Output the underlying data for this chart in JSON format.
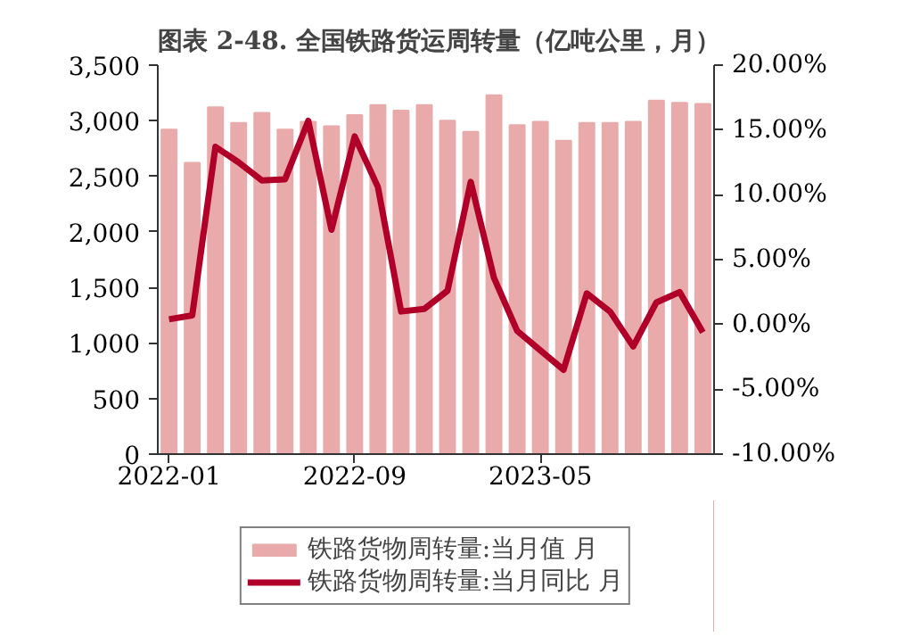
{
  "chart_data": {
    "type": "bar",
    "title": "图表 2-48. 全国铁路货运周转量（亿吨公里，月）",
    "x": [
      "2022-01",
      "2022-02",
      "2022-03",
      "2022-04",
      "2022-05",
      "2022-06",
      "2022-07",
      "2022-08",
      "2022-09",
      "2022-10",
      "2022-11",
      "2022-12",
      "2023-01",
      "2023-02",
      "2023-03",
      "2023-04",
      "2023-05",
      "2023-06",
      "2023-07",
      "2023-08",
      "2023-09",
      "2023-10",
      "2023-11",
      "2023-12"
    ],
    "xlim": [
      "2021-12-17",
      "2023-12-16"
    ],
    "xticks": [
      "2022-01",
      "2022-09",
      "2023-05"
    ],
    "ylim": [
      0,
      3500
    ],
    "yticks": [
      0,
      500,
      {
        "value": 1000,
        "label": "1,000"
      },
      {
        "value": 1500,
        "label": "1,500"
      },
      {
        "value": 2000,
        "label": "2,000"
      },
      {
        "value": 2500,
        "label": "2,500"
      },
      {
        "value": 3000,
        "label": "3,000"
      },
      {
        "value": 3500,
        "label": "3,500"
      }
    ],
    "y2lim": [
      -10,
      20
    ],
    "y2ticks": [
      {
        "value": -10,
        "label": "-10.00%"
      },
      {
        "value": -5,
        "label": "-5.00%"
      },
      {
        "value": 0,
        "label": "0.00%"
      },
      {
        "value": 5,
        "label": "5.00%"
      },
      {
        "value": 10,
        "label": "10.00%"
      },
      {
        "value": 15,
        "label": "15.00%"
      },
      {
        "value": 20,
        "label": "20.00%"
      }
    ],
    "grid": false,
    "legend": "bottom",
    "series": [
      {
        "name": "铁路货物周转量:当月值 月",
        "color": "#e8aaaa",
        "values": [
          2920,
          2620,
          3120,
          2980,
          3070,
          2920,
          2990,
          2950,
          3050,
          3140,
          3090,
          3140,
          3000,
          2900,
          3230,
          2960,
          2990,
          2820,
          2980,
          2980,
          2990,
          3180,
          3160,
          3150
        ]
      },
      {
        "name": "铁路货物周转量:当月同比 月",
        "type": "line",
        "axis": "y2",
        "color": "#b0002a",
        "values": [
          0.4,
          0.7,
          13.7,
          12.5,
          11.1,
          11.2,
          15.7,
          7.3,
          14.5,
          10.6,
          1.0,
          1.2,
          2.6,
          11.0,
          3.6,
          -0.5,
          -2.0,
          -3.5,
          2.4,
          1.0,
          -1.7,
          1.7,
          2.5,
          -0.6
        ]
      }
    ]
  }
}
